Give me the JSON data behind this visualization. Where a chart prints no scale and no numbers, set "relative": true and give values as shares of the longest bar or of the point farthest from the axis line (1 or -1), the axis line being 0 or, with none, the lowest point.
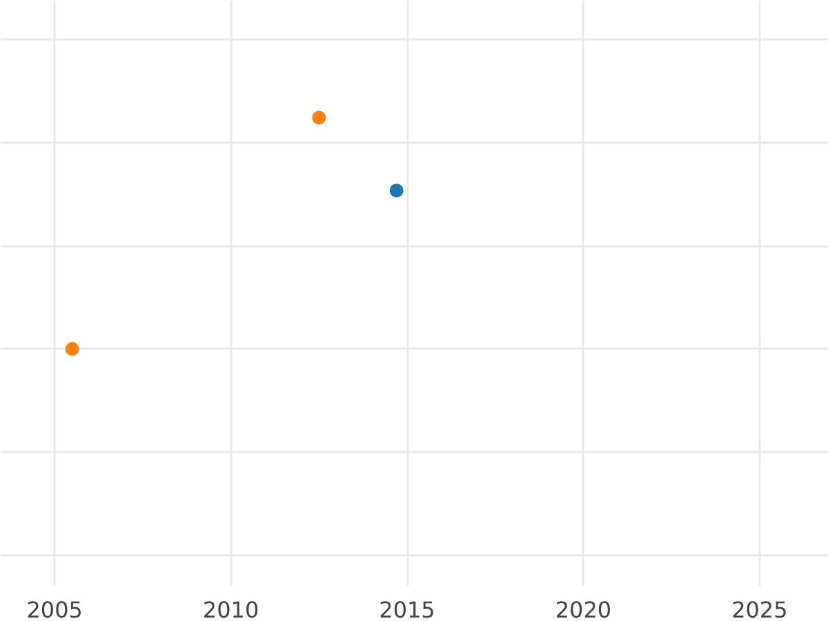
{
  "chart_data": {
    "type": "scatter",
    "relative": true,
    "series": [
      {
        "color": "#ff7f0e",
        "x": [
          2005.5,
          2012.5
        ],
        "values": [
          0,
          1
        ]
      },
      {
        "color": "#1f77b4",
        "x": [
          2014.7
        ],
        "values": [
          0.685
        ]
      }
    ],
    "xlim": [
      2003.47,
      2026.96
    ],
    "xticks": [
      2005,
      2010,
      2015,
      2020,
      2025
    ],
    "grid": true,
    "marker": "circle",
    "tick_labels": "x"
  }
}
